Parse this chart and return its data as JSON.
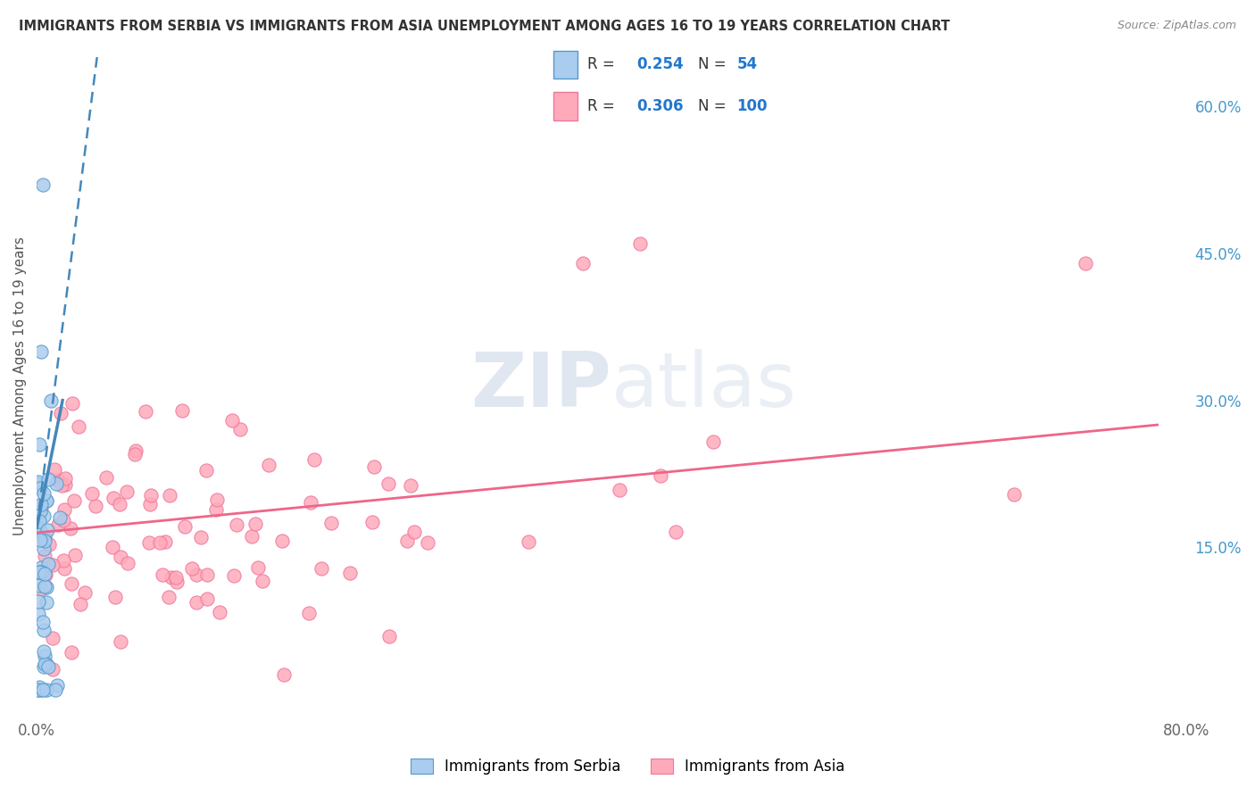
{
  "title": "IMMIGRANTS FROM SERBIA VS IMMIGRANTS FROM ASIA UNEMPLOYMENT AMONG AGES 16 TO 19 YEARS CORRELATION CHART",
  "source": "Source: ZipAtlas.com",
  "ylabel": "Unemployment Among Ages 16 to 19 years",
  "xlim": [
    0.0,
    0.8
  ],
  "ylim": [
    -0.02,
    0.65
  ],
  "serbia_R": 0.254,
  "serbia_N": 54,
  "asia_R": 0.306,
  "asia_N": 100,
  "serbia_color": "#aaccee",
  "serbia_edge_color": "#5599cc",
  "asia_color": "#ffaabb",
  "asia_edge_color": "#ee7799",
  "serbia_line_color": "#4488bb",
  "asia_line_color": "#ee6688",
  "background_color": "#ffffff",
  "grid_color": "#cccccc",
  "watermark_color": "#d8e8f0",
  "title_color": "#333333",
  "axis_label_color": "#666666",
  "right_tick_color": "#4499cc",
  "legend_border_color": "#cccccc"
}
